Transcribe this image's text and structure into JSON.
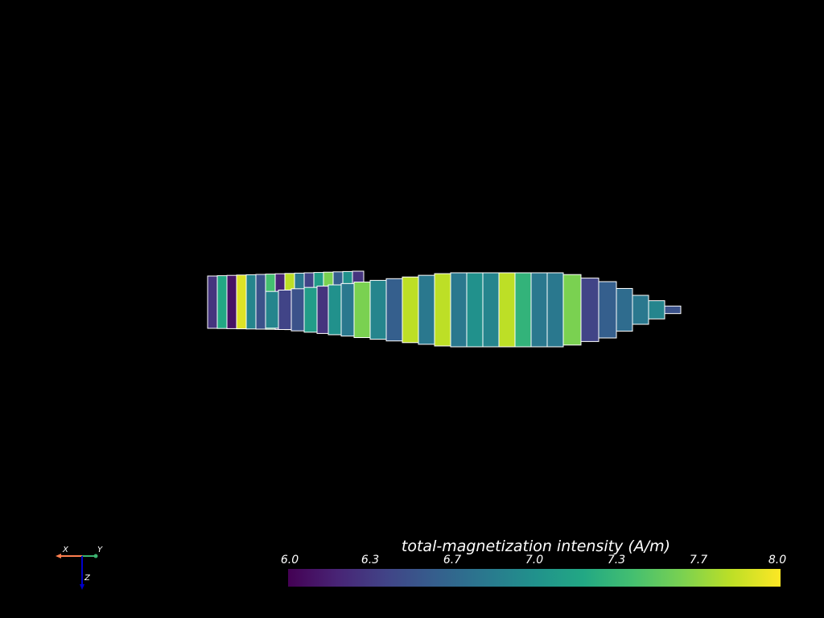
{
  "scalar_bar": {
    "title": "total-magnetization intensity (A/m)",
    "ticks": [
      "6.0",
      "6.3",
      "6.7",
      "7.0",
      "7.3",
      "7.7",
      "8.0"
    ],
    "range": [
      6.0,
      8.0
    ],
    "colormap": "viridis"
  },
  "axes": {
    "x_label": "X",
    "y_label": "Y",
    "z_label": "Z",
    "x_color": "#ff7f50",
    "y_color": "#3cb371",
    "z_color": "#0000cd"
  },
  "mesh": {
    "edge_color": "#ffffff",
    "cell_values": [
      6.3,
      7.2,
      6.1,
      7.9,
      6.9,
      6.5,
      7.4,
      6.2,
      7.8,
      6.8,
      6.4,
      7.1,
      7.6,
      6.6,
      7.0,
      6.3,
      6.9,
      6.4,
      6.5,
      7.1,
      6.3,
      7.0,
      6.8,
      7.6,
      6.9,
      6.6,
      7.8,
      6.8,
      7.8,
      6.8,
      7.0,
      6.9,
      7.8,
      7.3,
      6.8,
      6.8,
      7.6,
      6.4,
      6.6,
      6.7,
      6.8,
      6.9,
      6.5
    ]
  }
}
